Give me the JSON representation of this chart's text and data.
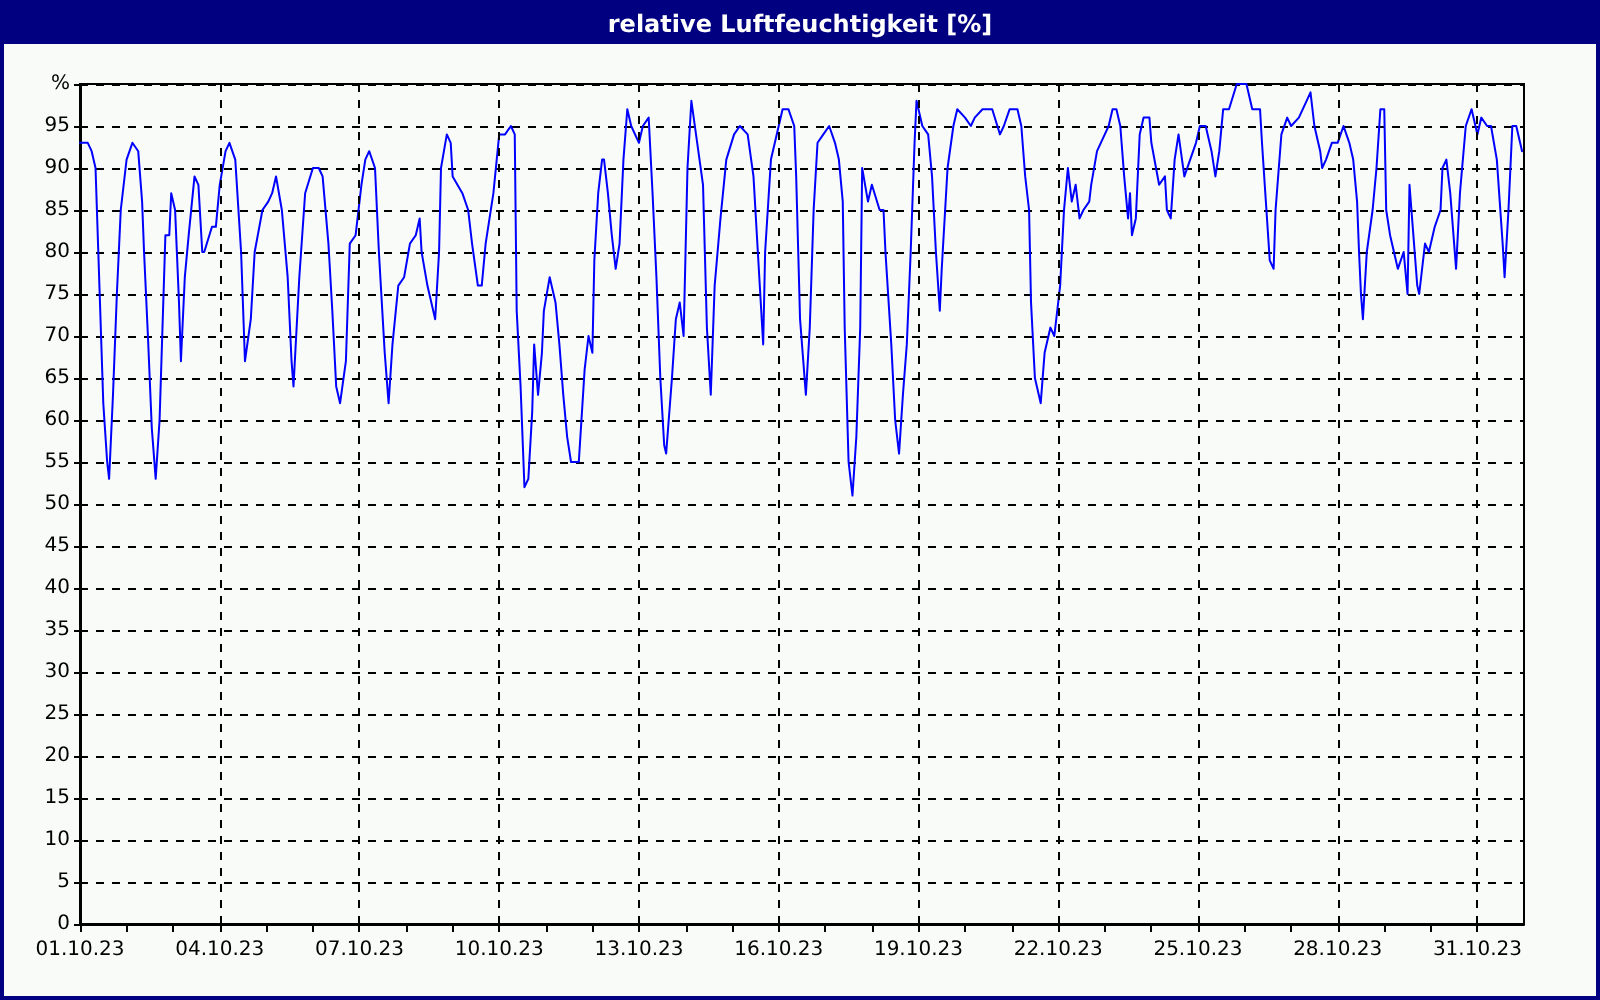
{
  "chart_data": {
    "type": "line",
    "title": "relative Luftfeuchtigkeit [%]",
    "color": "#0000ff",
    "marker": "none",
    "line_style": "solid",
    "grid": true,
    "xlim": [
      "--10-01",
      "--11-01"
    ],
    "ylim": [
      0,
      100
    ],
    "xticks": [
      {
        "value": "--10-01",
        "label": "01.10.23"
      },
      {
        "value": "--10-02",
        "label": null
      },
      {
        "value": "--10-03",
        "label": null
      },
      {
        "value": "--10-04",
        "label": "04.10.23"
      },
      {
        "value": "--10-05",
        "label": null
      },
      {
        "value": "--10-06",
        "label": null
      },
      {
        "value": "--10-07",
        "label": "07.10.23"
      },
      {
        "value": "--10-08",
        "label": null
      },
      {
        "value": "--10-09",
        "label": null
      },
      {
        "value": "--10-10",
        "label": "10.10.23"
      },
      {
        "value": "--10-11",
        "label": null
      },
      {
        "value": "--10-12",
        "label": null
      },
      {
        "value": "--10-13",
        "label": "13.10.23"
      },
      {
        "value": "--10-14",
        "label": null
      },
      {
        "value": "--10-15",
        "label": null
      },
      {
        "value": "--10-16",
        "label": "16.10.23"
      },
      {
        "value": "--10-17",
        "label": null
      },
      {
        "value": "--10-18",
        "label": null
      },
      {
        "value": "--10-19",
        "label": "19.10.23"
      },
      {
        "value": "--10-20",
        "label": null
      },
      {
        "value": "--10-21",
        "label": null
      },
      {
        "value": "--10-22",
        "label": "22.10.23"
      },
      {
        "value": "--10-23",
        "label": null
      },
      {
        "value": "--10-24",
        "label": null
      },
      {
        "value": "--10-25",
        "label": "25.10.23"
      },
      {
        "value": "--10-26",
        "label": null
      },
      {
        "value": "--10-27",
        "label": null
      },
      {
        "value": "--10-28",
        "label": "28.10.23"
      },
      {
        "value": "--10-29",
        "label": null
      },
      {
        "value": "--10-30",
        "label": null
      },
      {
        "value": "--10-31",
        "label": "31.10.23"
      }
    ],
    "yticks": [
      0,
      5,
      10,
      15,
      20,
      25,
      30,
      35,
      40,
      45,
      50,
      55,
      60,
      65,
      70,
      75,
      80,
      85,
      90,
      95,
      {
        "value": 100,
        "label": "%"
      }
    ],
    "x": [
      "--10-01T00:00",
      "--10-01T04:00",
      "--10-01T06:00",
      "--10-01T08:00",
      "--10-01T10:00",
      "--10-01T12:00",
      "--10-01T14:00",
      "--10-01T15:00",
      "--10-01T17:00",
      "--10-01T19:00",
      "--10-01T21:00",
      "--10-02T00:00",
      "--10-02T03:00",
      "--10-02T06:00",
      "--10-02T08:00",
      "--10-02T09:00",
      "--10-02T11:00",
      "--10-02T13:00",
      "--10-02T15:00",
      "--10-02T17:00",
      "--10-02T20:00",
      "--10-02T22:00",
      "--10-02T23:00",
      "--10-03T01:00",
      "--10-03T03:00",
      "--10-03T04:00",
      "--10-03T06:00",
      "--10-03T08:00",
      "--10-03T11:00",
      "--10-03T13:00",
      "--10-03T15:00",
      "--10-03T16:00",
      "--10-03T20:00",
      "--10-03T22:00",
      "--10-04T00:00",
      "--10-04T03:00",
      "--10-04T05:00",
      "--10-04T08:00",
      "--10-04T11:00",
      "--10-04T13:00",
      "--10-04T16:00",
      "--10-04T18:00",
      "--10-04T22:00",
      "--10-05T01:00",
      "--10-05T03:00",
      "--10-05T05:00",
      "--10-05T08:00",
      "--10-05T11:00",
      "--10-05T13:00",
      "--10-05T14:00",
      "--10-05T17:00",
      "--10-05T20:00",
      "--10-06T00:00",
      "--10-06T03:00",
      "--10-06T05:00",
      "--10-06T08:00",
      "--10-06T10:00",
      "--10-06T12:00",
      "--10-06T14:00",
      "--10-06T17:00",
      "--10-06T19:00",
      "--10-06T22:00",
      "--10-07T01:00",
      "--10-07T03:00",
      "--10-07T05:00",
      "--10-07T08:00",
      "--10-07T10:00",
      "--10-07T13:00",
      "--10-07T15:00",
      "--10-07T17:00",
      "--10-07T20:00",
      "--10-07T23:00",
      "--10-08T02:00",
      "--10-08T05:00",
      "--10-08T07:00",
      "--10-08T08:00",
      "--10-08T11:00",
      "--10-08T14:00",
      "--10-08T15:00",
      "--10-08T17:00",
      "--10-08T18:00",
      "--10-08T21:00",
      "--10-08T23:00",
      "--10-09T00:00",
      "--10-09T05:00",
      "--10-09T08:00",
      "--10-09T10:00",
      "--10-09T13:00",
      "--10-09T15:00",
      "--10-09T17:00",
      "--10-09T21:00",
      "--10-10T00:00",
      "--10-10T03:00",
      "--10-10T06:00",
      "--10-10T08:00",
      "--10-10T09:00",
      "--10-10T11:00",
      "--10-10T13:00",
      "--10-10T15:00",
      "--10-10T17:00",
      "--10-10T18:00",
      "--10-10T20:00",
      "--10-10T22:00",
      "--10-10T23:00",
      "--10-11T02:00",
      "--10-11T05:00",
      "--10-11T07:00",
      "--10-11T09:00",
      "--10-11T11:00",
      "--10-11T13:00",
      "--10-11T17:00",
      "--10-11T20:00",
      "--10-11T22:00",
      "--10-12T00:00",
      "--10-12T01:00",
      "--10-12T03:00",
      "--10-12T05:00",
      "--10-12T06:00",
      "--10-12T08:00",
      "--10-12T10:00",
      "--10-12T12:00",
      "--10-12T14:00",
      "--10-12T16:00",
      "--10-12T18:00",
      "--10-12T20:00",
      "--10-13T00:00",
      "--10-13T02:00",
      "--10-13T05:00",
      "--10-13T07:00",
      "--10-13T09:00",
      "--10-13T11:00",
      "--10-13T13:00",
      "--10-13T14:00",
      "--10-13T17:00",
      "--10-13T19:00",
      "--10-13T21:00",
      "--10-13T23:00",
      "--10-14T01:00",
      "--10-14T03:00",
      "--10-14T06:00",
      "--10-14T09:00",
      "--10-14T11:00",
      "--10-14T13:00",
      "--10-14T15:00",
      "--10-14T18:00",
      "--10-14T21:00",
      "--10-15T01:00",
      "--10-15T04:00",
      "--10-15T08:00",
      "--10-15T11:00",
      "--10-15T14:00",
      "--10-15T16:00",
      "--10-15T17:00",
      "--10-15T20:00",
      "--10-15T22:00",
      "--10-16T02:00",
      "--10-16T05:00",
      "--10-16T08:00",
      "--10-16T09:00",
      "--10-16T11:00",
      "--10-16T14:00",
      "--10-16T16:00",
      "--10-16T18:00",
      "--10-16T20:00",
      "--10-16T23:00",
      "--10-17T02:00",
      "--10-17T05:00",
      "--10-17T07:00",
      "--10-17T09:00",
      "--10-17T10:00",
      "--10-17T12:00",
      "--10-17T14:00",
      "--10-17T16:00",
      "--10-17T18:00",
      "--10-17T19:00",
      "--10-17T22:00",
      "--10-18T00:00",
      "--10-18T04:00",
      "--10-18T06:00",
      "--10-18T07:00",
      "--10-18T10:00",
      "--10-18T12:00",
      "--10-18T14:00",
      "--10-18T16:00",
      "--10-18T18:00",
      "--10-18T20:00",
      "--10-18T22:00",
      "--10-18T23:00",
      "--10-19T02:00",
      "--10-19T05:00",
      "--10-19T07:00",
      "--10-19T09:00",
      "--10-19T11:00",
      "--10-19T12:00",
      "--10-19T15:00",
      "--10-19T18:00",
      "--10-19T20:00",
      "--10-20T00:00",
      "--10-20T03:00",
      "--10-20T05:00",
      "--10-20T09:00",
      "--10-20T14:00",
      "--10-20T18:00",
      "--10-20T20:00",
      "--10-20T23:00",
      "--10-21T03:00",
      "--10-21T05:00",
      "--10-21T07:00",
      "--10-21T09:00",
      "--10-21T10:00",
      "--10-21T12:00",
      "--10-21T15:00",
      "--10-21T17:00",
      "--10-21T20:00",
      "--10-21T22:00",
      "--10-22T01:00",
      "--10-22T03:00",
      "--10-22T05:00",
      "--10-22T07:00",
      "--10-22T09:00",
      "--10-22T11:00",
      "--10-22T13:00",
      "--10-22T16:00",
      "--10-22T17:00",
      "--10-22T20:00",
      "--10-23T00:00",
      "--10-23T02:00",
      "--10-23T04:00",
      "--10-23T06:00",
      "--10-23T08:00",
      "--10-23T10:00",
      "--10-23T12:00",
      "--10-23T13:00",
      "--10-23T14:00",
      "--10-23T16:00",
      "--10-23T18:00",
      "--10-23T20:00",
      "--10-23T23:00",
      "--10-24T00:00",
      "--10-24T04:00",
      "--10-24T07:00",
      "--10-24T08:00",
      "--10-24T10:00",
      "--10-24T12:00",
      "--10-24T14:00",
      "--10-24T17:00",
      "--10-24T20:00",
      "--10-24T23:00",
      "--10-25T01:00",
      "--10-25T04:00",
      "--10-25T07:00",
      "--10-25T09:00",
      "--10-25T11:00",
      "--10-25T13:00",
      "--10-25T16:00",
      "--10-25T20:00",
      "--10-26T01:00",
      "--10-26T04:00",
      "--10-26T08:00",
      "--10-26T09:00",
      "--10-26T11:00",
      "--10-26T13:00",
      "--10-26T15:00",
      "--10-26T16:00",
      "--10-26T19:00",
      "--10-26T22:00",
      "--10-27T00:00",
      "--10-27T04:00",
      "--10-27T08:00",
      "--10-27T10:00",
      "--10-27T12:00",
      "--10-27T15:00",
      "--10-27T16:00",
      "--10-27T18:00",
      "--10-27T21:00",
      "--10-28T00:00",
      "--10-28T03:00",
      "--10-28T06:00",
      "--10-28T08:00",
      "--10-28T10:00",
      "--10-28T11:00",
      "--10-28T12:00",
      "--10-28T13:00",
      "--10-28T15:00",
      "--10-28T18:00",
      "--10-28T20:00",
      "--10-28T22:00",
      "--10-29T00:00",
      "--10-29T01:00",
      "--10-29T03:00",
      "--10-29T05:00",
      "--10-29T07:00",
      "--10-29T10:00",
      "--10-29T12:00",
      "--10-29T13:00",
      "--10-29T15:00",
      "--10-29T17:00",
      "--10-29T18:00",
      "--10-29T21:00",
      "--10-29T23:00",
      "--10-30T02:00",
      "--10-30T05:00",
      "--10-30T06:00",
      "--10-30T08:00",
      "--10-30T10:00",
      "--10-30T12:00",
      "--10-30T13:00",
      "--10-30T15:00",
      "--10-30T18:00",
      "--10-30T21:00",
      "--10-31T00:00",
      "--10-31T02:00",
      "--10-31T05:00",
      "--10-31T07:00",
      "--10-31T10:00",
      "--10-31T13:00",
      "--10-31T14:00",
      "--10-31T16:00",
      "--10-31T18:00",
      "--10-31T20:00",
      "--10-31T22:00",
      "--10-31T23:00"
    ],
    "values": [
      93,
      93,
      92,
      90,
      76,
      62,
      55,
      53,
      63,
      75,
      85,
      91,
      93,
      92,
      86,
      80,
      70,
      59,
      53,
      60,
      82,
      82,
      87,
      85,
      74,
      67,
      77,
      82,
      89,
      88,
      80,
      80,
      83,
      83,
      88,
      92,
      93,
      91,
      80,
      67,
      72,
      80,
      85,
      86,
      87,
      89,
      85,
      77,
      67,
      64,
      77,
      87,
      90,
      90,
      89,
      81,
      73,
      64,
      62,
      67,
      81,
      82,
      88,
      91,
      92,
      90,
      80,
      68,
      62,
      69,
      76,
      77,
      81,
      82,
      84,
      80,
      76,
      73,
      72,
      80,
      90,
      94,
      93,
      89,
      87,
      85,
      81,
      76,
      76,
      81,
      87,
      94,
      94,
      95,
      94,
      73,
      64,
      52,
      53,
      61,
      69,
      63,
      68,
      73,
      77,
      74,
      69,
      63,
      58,
      55,
      55,
      66,
      70,
      68,
      79,
      87,
      91,
      91,
      87,
      82,
      78,
      81,
      91,
      97,
      95,
      93,
      95,
      96,
      87,
      77,
      65,
      57,
      56,
      65,
      72,
      74,
      70,
      90,
      98,
      93,
      88,
      71,
      63,
      76,
      84,
      91,
      94,
      95,
      94,
      89,
      77,
      69,
      80,
      91,
      93,
      97,
      97,
      95,
      89,
      72,
      63,
      71,
      85,
      93,
      94,
      95,
      93,
      91,
      86,
      71,
      55,
      51,
      58,
      71,
      90,
      86,
      88,
      85,
      85,
      80,
      69,
      60,
      56,
      63,
      69,
      80,
      93,
      98,
      95,
      94,
      89,
      80,
      73,
      78,
      90,
      95,
      97,
      96,
      95,
      96,
      97,
      97,
      94,
      95,
      97,
      97,
      95,
      89,
      85,
      74,
      65,
      62,
      68,
      71,
      70,
      76,
      85,
      90,
      86,
      88,
      84,
      85,
      86,
      88,
      92,
      94,
      95,
      97,
      97,
      95,
      89,
      84,
      87,
      82,
      84,
      94,
      96,
      96,
      93,
      88,
      89,
      85,
      84,
      91,
      94,
      89,
      91,
      93,
      95,
      95,
      92,
      89,
      92,
      97,
      97,
      100,
      100,
      97,
      97,
      93,
      86,
      79,
      78,
      85,
      94,
      96,
      95,
      96,
      98,
      99,
      95,
      92,
      90,
      91,
      93,
      93,
      95,
      93,
      91,
      86,
      80,
      75,
      72,
      80,
      85,
      90,
      97,
      97,
      85,
      82,
      80,
      78,
      80,
      75,
      88,
      82,
      76,
      75,
      81,
      80,
      83,
      85,
      90,
      91,
      87,
      81,
      78,
      87,
      95,
      97,
      94,
      96,
      95,
      95,
      91,
      81,
      77,
      85,
      95,
      95,
      93,
      92
    ]
  }
}
